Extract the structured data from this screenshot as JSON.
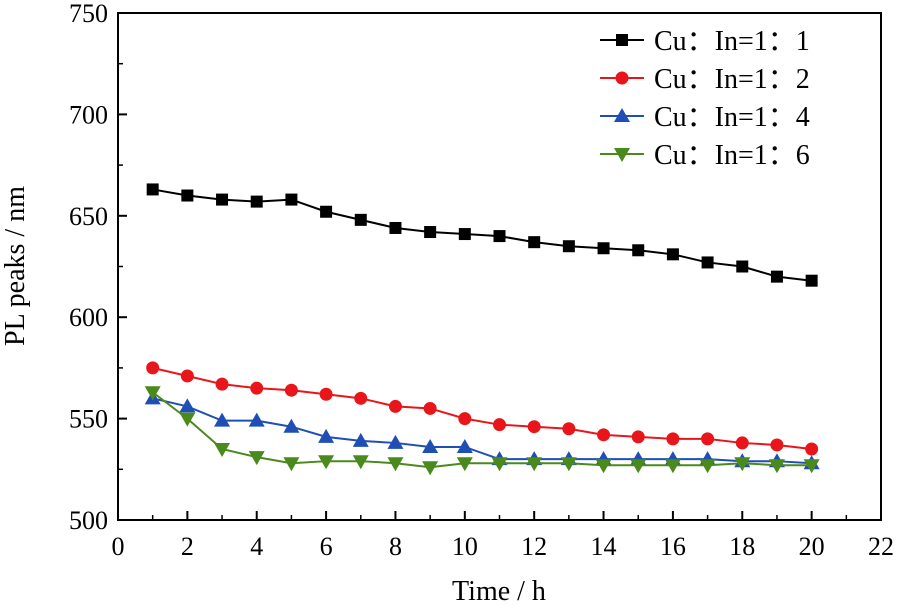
{
  "chart_data": {
    "type": "line",
    "title": "",
    "xlabel": "Time / h",
    "ylabel": "PL peaks / nm",
    "xlim": [
      0,
      22
    ],
    "ylim": [
      500,
      750
    ],
    "xticks": [
      0,
      2,
      4,
      6,
      8,
      10,
      12,
      14,
      16,
      18,
      20,
      22
    ],
    "yticks": [
      500,
      550,
      600,
      650,
      700,
      750
    ],
    "grid": false,
    "legend_position": "top-right",
    "x": [
      1,
      2,
      3,
      4,
      5,
      6,
      7,
      8,
      9,
      10,
      11,
      12,
      13,
      14,
      15,
      16,
      17,
      18,
      19,
      20
    ],
    "series": [
      {
        "name": "Cu：In=1：1",
        "color": "#000000",
        "marker": "square",
        "values": [
          663,
          660,
          658,
          657,
          658,
          652,
          648,
          644,
          642,
          641,
          640,
          637,
          635,
          634,
          633,
          631,
          627,
          625,
          620,
          618
        ]
      },
      {
        "name": "Cu：In=1：2",
        "color": "#e8161b",
        "marker": "circle",
        "values": [
          575,
          571,
          567,
          565,
          564,
          562,
          560,
          556,
          555,
          550,
          547,
          546,
          545,
          542,
          541,
          540,
          540,
          538,
          537,
          535
        ]
      },
      {
        "name": "Cu：In=1：4",
        "color": "#1f4fb4",
        "marker": "triangle-up",
        "values": [
          560,
          556,
          549,
          549,
          546,
          541,
          539,
          538,
          536,
          536,
          530,
          530,
          530,
          530,
          530,
          530,
          530,
          529,
          529,
          528
        ]
      },
      {
        "name": "Cu：In=1：6",
        "color": "#4a8a1c",
        "marker": "triangle-down",
        "values": [
          563,
          550,
          535,
          531,
          528,
          529,
          529,
          528,
          526,
          528,
          528,
          528,
          528,
          527,
          527,
          527,
          527,
          528,
          527,
          527
        ]
      }
    ]
  }
}
